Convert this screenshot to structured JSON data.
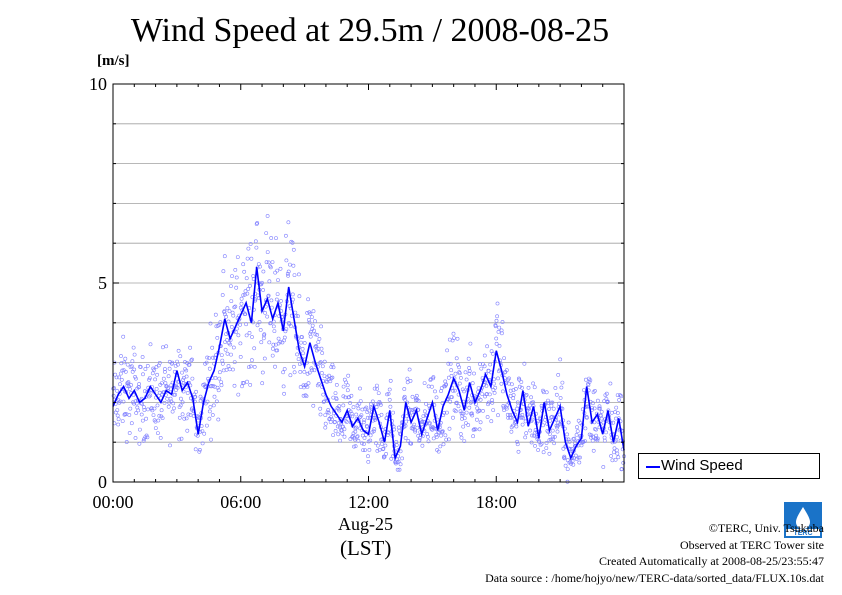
{
  "title": "Wind Speed at 29.5m / 2008-08-25",
  "unit_label": "[m/s]",
  "chart_data": {
    "type": "line+scatter",
    "title": "Wind Speed at 29.5m / 2008-08-25",
    "ylabel": "[m/s]",
    "xlabel": "(LST)",
    "x_date_label": "Aug-25",
    "x_units": "hours (LST)",
    "xlim": [
      0,
      24
    ],
    "ylim": [
      0,
      10
    ],
    "x_ticks": [
      0,
      6,
      12,
      18
    ],
    "x_tick_labels": [
      "00:00",
      "06:00",
      "12:00",
      "18:00"
    ],
    "y_ticks": [
      0,
      5,
      10
    ],
    "y_tick_labels": [
      "0",
      "5",
      "10"
    ],
    "y_gridlines": [
      1,
      2,
      3,
      4,
      5,
      6,
      7,
      8,
      9
    ],
    "legend": {
      "entries": [
        "Wind Speed"
      ],
      "placement": "right-bottom outside"
    },
    "series": [
      {
        "name": "Wind Speed",
        "color": "#0000ff",
        "scatter_color": "#7f7fff",
        "x": [
          0.0,
          0.25,
          0.5,
          0.75,
          1.0,
          1.25,
          1.5,
          1.75,
          2.0,
          2.25,
          2.5,
          2.75,
          3.0,
          3.25,
          3.5,
          3.75,
          4.0,
          4.25,
          4.5,
          4.75,
          5.0,
          5.25,
          5.5,
          5.75,
          6.0,
          6.25,
          6.5,
          6.75,
          7.0,
          7.25,
          7.5,
          7.75,
          8.0,
          8.25,
          8.5,
          8.75,
          9.0,
          9.25,
          9.5,
          9.75,
          10.0,
          10.25,
          10.5,
          10.75,
          11.0,
          11.25,
          11.5,
          11.75,
          12.0,
          12.25,
          12.5,
          12.75,
          13.0,
          13.25,
          13.5,
          13.75,
          14.0,
          14.25,
          14.5,
          14.75,
          15.0,
          15.25,
          15.5,
          15.75,
          16.0,
          16.25,
          16.5,
          16.75,
          17.0,
          17.25,
          17.5,
          17.75,
          18.0,
          18.25,
          18.5,
          18.75,
          19.0,
          19.25,
          19.5,
          19.75,
          20.0,
          20.25,
          20.5,
          20.75,
          21.0,
          21.25,
          21.5,
          21.75,
          22.0,
          22.25,
          22.5,
          22.75,
          23.0,
          23.25,
          23.5,
          23.75,
          24.0
        ],
        "values": [
          1.9,
          2.2,
          2.4,
          2.1,
          2.3,
          2.0,
          2.1,
          2.4,
          2.2,
          2.0,
          2.3,
          2.2,
          2.8,
          2.3,
          2.5,
          2.1,
          1.2,
          2.0,
          2.5,
          2.8,
          3.4,
          4.1,
          3.6,
          3.9,
          4.2,
          4.5,
          4.0,
          5.4,
          4.3,
          4.6,
          4.1,
          4.5,
          3.8,
          4.9,
          4.1,
          3.3,
          2.9,
          3.5,
          3.0,
          2.6,
          2.2,
          1.9,
          1.7,
          1.5,
          1.8,
          1.4,
          1.6,
          1.3,
          1.2,
          1.9,
          1.5,
          1.0,
          1.8,
          0.6,
          0.9,
          2.0,
          1.5,
          1.8,
          1.2,
          1.6,
          2.0,
          1.3,
          1.9,
          2.2,
          2.6,
          2.3,
          1.8,
          2.5,
          2.0,
          2.3,
          2.7,
          2.4,
          3.3,
          2.8,
          2.2,
          1.8,
          1.5,
          2.3,
          1.4,
          1.9,
          1.1,
          2.0,
          1.3,
          1.6,
          1.9,
          1.0,
          0.6,
          0.9,
          1.1,
          2.4,
          1.5,
          1.7,
          1.2,
          1.8,
          1.0,
          1.6,
          0.8
        ]
      }
    ]
  },
  "legend_label": "Wind Speed",
  "credits": {
    "line1": "©TERC, Univ. Tsukuba",
    "line2": "Observed at TERC Tower site",
    "line3": "Created Automatically at 2008-08-25/23:55:47",
    "line4": "Data source : /home/hojyo/new/TERC-data/sorted_data/FLUX.10s.dat"
  },
  "logo_text": "TERC",
  "colors": {
    "line": "#0000ff",
    "scatter": "#7f7fff",
    "grid": "#a0a0a0"
  }
}
